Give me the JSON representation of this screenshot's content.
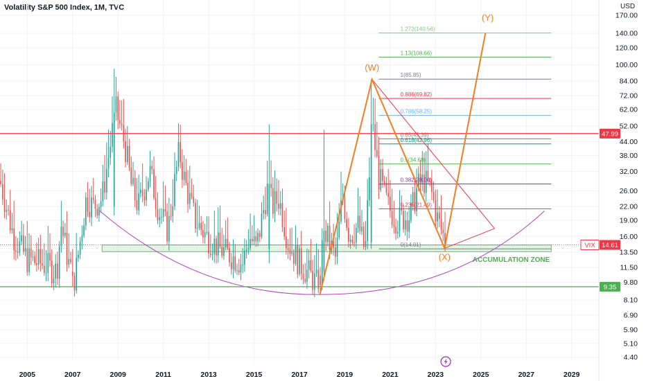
{
  "header": {
    "title": "Volatility S&P 500 Index, 1M, TVC",
    "currency": "USD"
  },
  "chart_data": {
    "type": "candlestick",
    "y_axis": {
      "scale": "log",
      "ylim": [
        4.2,
        175
      ],
      "ticks": [
        "170.00",
        "140.00",
        "120.00",
        "100.00",
        "84.00",
        "72.00",
        "62.00",
        "52.00",
        "44.00",
        "38.00",
        "32.00",
        "26.00",
        "22.00",
        "19.00",
        "16.00",
        "13.50",
        "11.50",
        "9.80",
        "8.10",
        "6.90",
        "5.90",
        "5.10",
        "4.40"
      ],
      "position": "right"
    },
    "x_axis": {
      "xlim": [
        2003.8,
        2030.2
      ],
      "ticks": [
        "2005",
        "2007",
        "2009",
        "2011",
        "2013",
        "2015",
        "2017",
        "2019",
        "2021",
        "2023",
        "2025",
        "2027",
        "2029"
      ]
    },
    "colors": {
      "up": "#26a69a",
      "down": "#ef5350"
    },
    "anchors": [
      [
        2003.8,
        29
      ],
      [
        2004.4,
        16
      ],
      [
        2005.0,
        12.5
      ],
      [
        2005.6,
        12
      ],
      [
        2006.3,
        11
      ],
      [
        2006.5,
        18
      ],
      [
        2006.9,
        11
      ],
      [
        2007.1,
        10.2
      ],
      [
        2007.6,
        24
      ],
      [
        2007.9,
        22
      ],
      [
        2008.3,
        24
      ],
      [
        2008.9,
        62
      ],
      [
        2009.3,
        43
      ],
      [
        2009.6,
        27
      ],
      [
        2009.9,
        22
      ],
      [
        2010.4,
        32
      ],
      [
        2010.8,
        21
      ],
      [
        2011.2,
        17
      ],
      [
        2011.7,
        40
      ],
      [
        2011.9,
        30
      ],
      [
        2012.4,
        19
      ],
      [
        2012.9,
        16
      ],
      [
        2013.5,
        14
      ],
      [
        2014.0,
        13
      ],
      [
        2014.5,
        12
      ],
      [
        2014.8,
        16
      ],
      [
        2015.1,
        14
      ],
      [
        2015.6,
        27
      ],
      [
        2015.8,
        22
      ],
      [
        2016.1,
        24
      ],
      [
        2016.5,
        15
      ],
      [
        2017.0,
        12
      ],
      [
        2017.5,
        10.5
      ],
      [
        2017.8,
        9.5
      ],
      [
        2018.1,
        17
      ],
      [
        2018.6,
        12.5
      ],
      [
        2018.9,
        25
      ],
      [
        2019.2,
        16
      ],
      [
        2019.6,
        18
      ],
      [
        2019.9,
        13.5
      ],
      [
        2020.2,
        54
      ],
      [
        2020.5,
        30
      ],
      [
        2020.9,
        22
      ],
      [
        2021.3,
        19
      ],
      [
        2021.9,
        20
      ],
      [
        2022.2,
        27
      ],
      [
        2022.5,
        29
      ],
      [
        2022.8,
        26
      ],
      [
        2023.1,
        19
      ],
      [
        2023.4,
        15.5
      ]
    ],
    "highlights": [
      {
        "x": 2008.8,
        "o": 22,
        "h": 96,
        "l": 20,
        "c": 60
      },
      {
        "x": 2020.2,
        "o": 15,
        "h": 85.47,
        "l": 14,
        "c": 53
      },
      {
        "x": 2015.7,
        "o": 14,
        "h": 53,
        "l": 12,
        "c": 28
      },
      {
        "x": 2018.1,
        "o": 11,
        "h": 50,
        "l": 10,
        "c": 17
      },
      {
        "x": 2007.0,
        "o": 11,
        "h": 14,
        "l": 9.4,
        "c": 10.5
      },
      {
        "x": 2017.9,
        "o": 10.5,
        "h": 11.5,
        "l": 8.56,
        "c": 9.5
      }
    ],
    "horizontal_levels": [
      {
        "value": 47.99,
        "label": "47.99",
        "color": "#f23645"
      },
      {
        "value": 9.35,
        "label": "9.35",
        "color": "#4caf50"
      }
    ],
    "last_price": {
      "symbol": "VIX",
      "value": 14.61,
      "label": "14.61",
      "color": "#f23645"
    },
    "fibonacci": {
      "x_start": 2020.5,
      "x_end": 2028.1,
      "levels": [
        {
          "value": 140.56,
          "label": "1.272(140.56)",
          "color": "#81c784"
        },
        {
          "value": 108.66,
          "label": "1.13(108.66)",
          "color": "#4caf50"
        },
        {
          "value": 85.85,
          "label": "1(85.85)",
          "color": "#787b86"
        },
        {
          "value": 69.82,
          "label": "0.886(69.82)",
          "color": "#f23645"
        },
        {
          "value": 58.25,
          "label": "0.786(58.25)",
          "color": "#64b5f6"
        },
        {
          "value": 45.39,
          "label": "0.65(45.39)",
          "color": "#787b86"
        },
        {
          "value": 42.96,
          "label": "0.618(42.96)",
          "color": "#089981"
        },
        {
          "value": 34.68,
          "label": "0.5(34.68)",
          "color": "#4caf50"
        },
        {
          "value": 28.0,
          "label": "0.382(28.00)",
          "color": "#9c27b0"
        },
        {
          "value": 21.49,
          "label": "0.236(21.49)",
          "color": "#f23645"
        },
        {
          "value": 14.01,
          "label": "0(14.01)",
          "color": "#787b86"
        }
      ]
    },
    "accumulation_zone": {
      "label": "ACCUMULATION ZONE",
      "x_start": 2008.3,
      "x_end": 2028.1,
      "y_low": 13.6,
      "y_high": 14.6
    },
    "wave_path": [
      [
        2017.9,
        8.6
      ],
      [
        2020.2,
        85.6
      ],
      [
        2023.4,
        14.1
      ],
      [
        2025.2,
        140.6
      ]
    ],
    "wave_labels": [
      {
        "text": "(W)",
        "x": 2020.2,
        "y": 94
      },
      {
        "text": "(X)",
        "x": 2023.4,
        "y": 12.4
      },
      {
        "text": "(Y)",
        "x": 2025.3,
        "y": 160
      }
    ],
    "triangle": [
      [
        2020.2,
        85.6
      ],
      [
        2023.4,
        14.1
      ],
      [
        2025.6,
        17.4
      ]
    ],
    "arc": {
      "x_start": 2008.2,
      "x_end": 2027.8,
      "bottom_x": 2017.9,
      "bottom_y": 8.6,
      "left_y": 21,
      "right_y": 21
    },
    "annotation_icon": "lightning-icon"
  }
}
